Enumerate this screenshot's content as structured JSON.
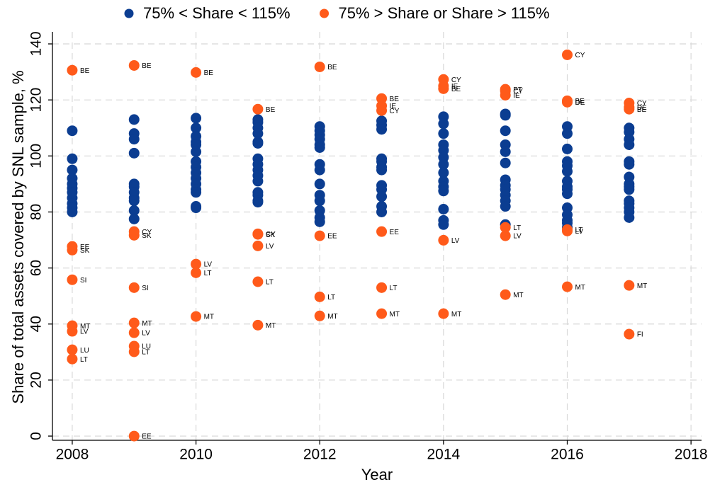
{
  "chart_data": {
    "type": "scatter",
    "xlabel": "Year",
    "ylabel": "Share of total assets covered by SNL sample, %",
    "xlim": [
      2007.68,
      2018.17
    ],
    "ylim": [
      -1.5,
      144.3
    ],
    "xticks": [
      2008,
      2010,
      2012,
      2014,
      2016,
      2018
    ],
    "yticks": [
      0,
      20,
      40,
      60,
      80,
      100,
      120,
      140
    ],
    "grid": true,
    "legend": "top",
    "series": [
      {
        "name": "75% < Share < 115%",
        "color": "#0b3d91",
        "x": [
          2008,
          2008,
          2008,
          2008,
          2008,
          2008,
          2008,
          2008,
          2008,
          2008,
          2008,
          2009,
          2009,
          2009,
          2009,
          2009,
          2009,
          2009,
          2009,
          2009,
          2009,
          2009,
          2010,
          2010,
          2010,
          2010,
          2010,
          2010,
          2010,
          2010,
          2010,
          2010,
          2010,
          2010,
          2010,
          2010,
          2010,
          2011,
          2011,
          2011,
          2011,
          2011,
          2011,
          2011,
          2011,
          2011,
          2011,
          2011,
          2011,
          2011,
          2011,
          2011,
          2012,
          2012,
          2012,
          2012,
          2012,
          2012,
          2012,
          2012,
          2012,
          2012,
          2012,
          2012,
          2012,
          2012,
          2013,
          2013,
          2013,
          2013,
          2013,
          2013,
          2013,
          2013,
          2013,
          2013,
          2013,
          2013,
          2014,
          2014,
          2014,
          2014,
          2014,
          2014,
          2014,
          2014,
          2014,
          2014,
          2014,
          2014,
          2014,
          2014,
          2015,
          2015,
          2015,
          2015,
          2015,
          2015,
          2015,
          2015,
          2015,
          2015,
          2015,
          2015,
          2015,
          2016,
          2016,
          2016,
          2016,
          2016,
          2016,
          2016,
          2016,
          2016,
          2016,
          2016,
          2016,
          2016,
          2016,
          2016,
          2017,
          2017,
          2017,
          2017,
          2017,
          2017,
          2017,
          2017,
          2017,
          2017,
          2017,
          2017,
          2017,
          2017,
          2017
        ],
        "values": [
          109,
          99,
          95,
          92,
          90,
          88.5,
          87,
          85,
          83,
          81.5,
          80,
          113,
          108,
          106,
          101,
          90,
          89,
          87,
          85,
          84,
          80.5,
          77.5,
          113.5,
          110,
          107,
          105,
          104,
          101.5,
          98,
          96,
          94,
          92,
          90,
          88,
          87,
          82,
          81.5,
          113,
          112,
          110,
          108,
          105,
          104.5,
          99,
          97,
          95,
          93,
          91,
          87,
          86,
          84,
          83.5,
          110.5,
          109,
          107.5,
          106,
          104,
          103,
          97,
          95,
          90,
          86,
          84,
          80.5,
          78,
          76.5,
          112.5,
          111,
          109.5,
          99,
          98,
          96,
          95,
          89.5,
          88,
          85.5,
          82,
          80,
          114,
          111.5,
          108,
          104,
          102,
          99.5,
          97,
          94,
          91,
          89,
          87.5,
          81,
          77,
          75.5,
          115,
          114.5,
          109,
          104,
          101.5,
          97.5,
          91.5,
          89.5,
          88,
          86,
          84,
          82,
          75.5,
          110.5,
          108,
          102.5,
          98,
          96.5,
          94.5,
          91,
          89,
          88,
          86.5,
          81.5,
          79,
          77,
          76,
          74.5,
          110,
          108.5,
          106,
          104,
          98,
          97,
          92.5,
          90,
          89,
          88,
          84,
          83,
          81.5,
          80,
          78
        ]
      },
      {
        "name": "75% > Share or Share > 115%",
        "color": "#ff5a1a",
        "x": [
          2008,
          2008,
          2008,
          2008,
          2008,
          2008,
          2008,
          2008,
          2009,
          2009,
          2009,
          2009,
          2009,
          2009,
          2009,
          2009,
          2009,
          2010,
          2010,
          2010,
          2010,
          2011,
          2011,
          2011,
          2011,
          2011,
          2011,
          2012,
          2012,
          2012,
          2012,
          2013,
          2013,
          2013,
          2013,
          2013,
          2013,
          2014,
          2014,
          2014,
          2014,
          2014,
          2015,
          2015,
          2015,
          2015,
          2015,
          2015,
          2016,
          2016,
          2016,
          2016,
          2016,
          2016,
          2017,
          2017,
          2017,
          2017,
          2017
        ],
        "values": [
          130.6,
          67.7,
          66.4,
          55.8,
          39.4,
          37.4,
          30.8,
          27.5,
          132.3,
          73.0,
          71.7,
          53.0,
          40.4,
          36.9,
          32.1,
          30.1,
          0,
          129.8,
          61.4,
          58.3,
          42.7,
          116.7,
          72.2,
          72.0,
          67.9,
          55.1,
          39.6,
          131.8,
          71.5,
          49.7,
          42.9,
          120.5,
          117.9,
          116.2,
          73.0,
          53.0,
          43.7,
          127.3,
          125.0,
          124.0,
          69.9,
          43.7,
          123.8,
          123.2,
          121.7,
          74.5,
          71.5,
          50.5,
          136.1,
          119.7,
          119.2,
          73.7,
          73.2,
          53.3,
          118.9,
          117.4,
          116.7,
          53.8,
          36.4
        ],
        "labels": [
          "BE",
          "EE",
          "SK",
          "SI",
          "MT",
          "LV",
          "LU",
          "LT",
          "BE",
          "CY",
          "SK",
          "SI",
          "MT",
          "LV",
          "LU",
          "LT",
          "EE",
          "BE",
          "LV",
          "LT",
          "MT",
          "BE",
          "CY",
          "SK",
          "LV",
          "LT",
          "MT",
          "BE",
          "EE",
          "LT",
          "MT",
          "BE",
          "IE",
          "CY",
          "EE",
          "LT",
          "MT",
          "CY",
          "IE",
          "BE",
          "LV",
          "MT",
          "PT",
          "CY",
          "IE",
          "LT",
          "LV",
          "MT",
          "CY",
          "BE",
          "DE",
          "LT",
          "LV",
          "MT",
          "CY",
          "DE",
          "BE",
          "MT",
          "FI"
        ]
      }
    ]
  }
}
